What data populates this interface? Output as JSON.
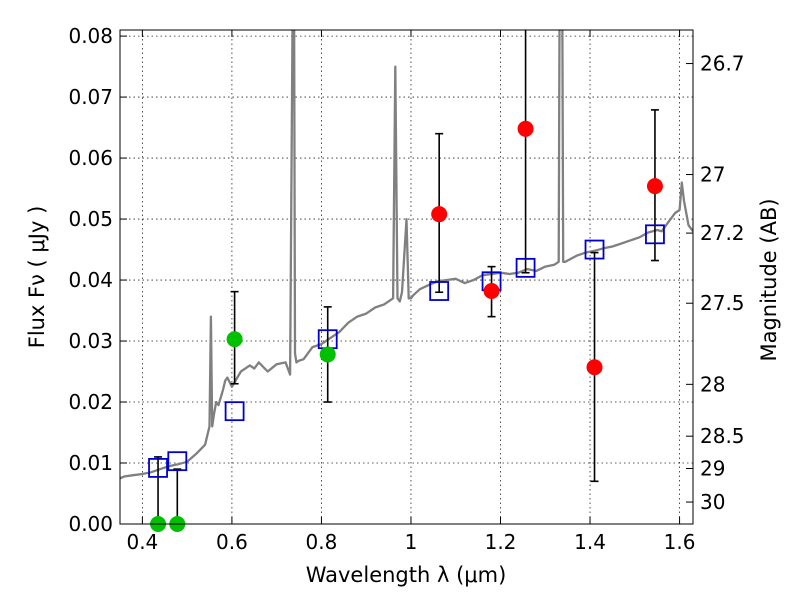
{
  "chart_data": {
    "type": "scatter",
    "xlabel": "Wavelength  λ (μm)",
    "ylabel": "Flux  Fν  ( μJy )",
    "y2label": "Magnitude (AB)",
    "xlim": [
      0.35,
      1.63
    ],
    "ylim": [
      0.0,
      0.081
    ],
    "grid": true,
    "x_ticks": [
      0.4,
      0.6,
      0.8,
      1.0,
      1.2,
      1.4,
      1.6
    ],
    "x_tick_labels": [
      "0.4",
      "0.6",
      "0.8",
      "1",
      "1.2",
      "1.4",
      "1.6"
    ],
    "y_ticks": [
      0.0,
      0.01,
      0.02,
      0.03,
      0.04,
      0.05,
      0.06,
      0.07,
      0.08
    ],
    "y_tick_labels": [
      "0.00",
      "0.01",
      "0.02",
      "0.03",
      "0.04",
      "0.05",
      "0.06",
      "0.07",
      "0.08"
    ],
    "y2_ticks": [
      {
        "label": "26.7",
        "flux": 0.0755
      },
      {
        "label": "27",
        "flux": 0.0573
      },
      {
        "label": "27.2",
        "flux": 0.0477
      },
      {
        "label": "27.5",
        "flux": 0.0362
      },
      {
        "label": "28",
        "flux": 0.0229
      },
      {
        "label": "28.5",
        "flux": 0.0144
      },
      {
        "label": "29",
        "flux": 0.0091
      },
      {
        "label": "30",
        "flux": 0.0036
      }
    ],
    "colors": {
      "model": "#808080",
      "observed_optical": "#00c000",
      "observed_nir": "#ff0000",
      "synthetic": "#0000cc",
      "errorbar": "#000000"
    },
    "model_spectrum": {
      "x": [
        0.35,
        0.36,
        0.38,
        0.4,
        0.42,
        0.44,
        0.46,
        0.48,
        0.5,
        0.52,
        0.54,
        0.55,
        0.553,
        0.556,
        0.56,
        0.565,
        0.57,
        0.58,
        0.585,
        0.59,
        0.6,
        0.62,
        0.64,
        0.65,
        0.66,
        0.68,
        0.7,
        0.72,
        0.73,
        0.738,
        0.741,
        0.744,
        0.75,
        0.76,
        0.78,
        0.8,
        0.82,
        0.84,
        0.86,
        0.88,
        0.9,
        0.92,
        0.94,
        0.96,
        0.965,
        0.97,
        0.975,
        0.98,
        0.99,
        0.995,
        1.0,
        1.005,
        1.02,
        1.04,
        1.06,
        1.08,
        1.1,
        1.12,
        1.14,
        1.16,
        1.18,
        1.2,
        1.22,
        1.24,
        1.26,
        1.28,
        1.3,
        1.32,
        1.33,
        1.335,
        1.34,
        1.345,
        1.35,
        1.37,
        1.39,
        1.41,
        1.43,
        1.45,
        1.47,
        1.49,
        1.51,
        1.53,
        1.55,
        1.56,
        1.57,
        1.58,
        1.59,
        1.6,
        1.605,
        1.61,
        1.62,
        1.63
      ],
      "y": [
        0.0075,
        0.0078,
        0.008,
        0.0082,
        0.0085,
        0.009,
        0.0095,
        0.0098,
        0.0102,
        0.0115,
        0.013,
        0.016,
        0.034,
        0.016,
        0.018,
        0.02,
        0.0195,
        0.022,
        0.0235,
        0.024,
        0.0225,
        0.025,
        0.026,
        0.0255,
        0.0265,
        0.025,
        0.0262,
        0.0265,
        0.0245,
        0.11,
        0.028,
        0.0265,
        0.0268,
        0.027,
        0.029,
        0.0295,
        0.0305,
        0.0315,
        0.033,
        0.034,
        0.0345,
        0.0355,
        0.036,
        0.037,
        0.075,
        0.037,
        0.0365,
        0.038,
        0.05,
        0.037,
        0.037,
        0.0375,
        0.0385,
        0.0392,
        0.0398,
        0.04,
        0.0402,
        0.0395,
        0.04,
        0.0408,
        0.041,
        0.0412,
        0.041,
        0.0412,
        0.0418,
        0.0415,
        0.0422,
        0.0425,
        0.043,
        0.15,
        0.043,
        0.043,
        0.0432,
        0.044,
        0.0445,
        0.0448,
        0.0452,
        0.0455,
        0.046,
        0.0465,
        0.047,
        0.0478,
        0.0482,
        0.048,
        0.049,
        0.05,
        0.051,
        0.0515,
        0.056,
        0.053,
        0.049,
        0.048
      ]
    },
    "observed_optical": {
      "name": "",
      "points": [
        {
          "x": 0.435,
          "y": 0.0,
          "err_up": 0.011,
          "err_down": 0.0
        },
        {
          "x": 0.478,
          "y": 0.0,
          "err_up": 0.009,
          "err_down": 0.0
        },
        {
          "x": 0.606,
          "y": 0.0303,
          "err_up": 0.0078,
          "err_down": 0.0073
        },
        {
          "x": 0.814,
          "y": 0.0278,
          "err_up": 0.0078,
          "err_down": 0.0078
        }
      ]
    },
    "observed_nir": {
      "name": "",
      "points": [
        {
          "x": 1.063,
          "y": 0.0508,
          "err_up": 0.0132,
          "err_down": 0.0128
        },
        {
          "x": 1.18,
          "y": 0.0382,
          "err_up": 0.004,
          "err_down": 0.0042
        },
        {
          "x": 1.256,
          "y": 0.0648,
          "err_up": 0.017,
          "err_down": 0.0236
        },
        {
          "x": 1.41,
          "y": 0.0257,
          "err_up": 0.0188,
          "err_down": 0.0187
        },
        {
          "x": 1.545,
          "y": 0.0554,
          "err_up": 0.0125,
          "err_down": 0.0122
        }
      ]
    },
    "synthetic": {
      "name": "",
      "points": [
        {
          "x": 0.435,
          "y": 0.0092
        },
        {
          "x": 0.478,
          "y": 0.0103
        },
        {
          "x": 0.606,
          "y": 0.0185
        },
        {
          "x": 0.814,
          "y": 0.0303
        },
        {
          "x": 1.063,
          "y": 0.0382
        },
        {
          "x": 1.18,
          "y": 0.0398
        },
        {
          "x": 1.256,
          "y": 0.042
        },
        {
          "x": 1.41,
          "y": 0.045
        },
        {
          "x": 1.545,
          "y": 0.0475
        }
      ]
    }
  }
}
